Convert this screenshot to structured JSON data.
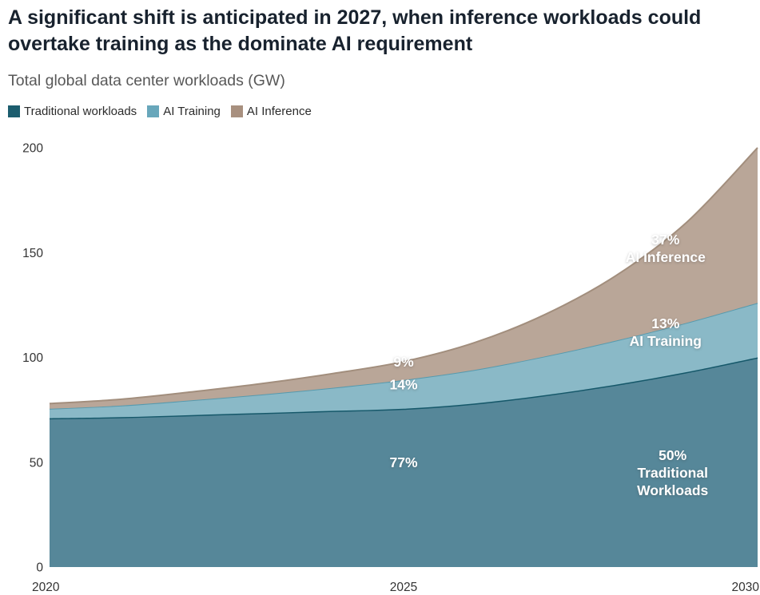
{
  "header": {
    "title": "A significant shift is anticipated in 2027, when inference workloads could overtake training as the dominate AI requirement",
    "subtitle": "Total global data center workloads (GW)"
  },
  "legend": {
    "items": [
      {
        "label": "Traditional workloads",
        "color": "#1c5d6e"
      },
      {
        "label": "AI Training",
        "color": "#68a7bb"
      },
      {
        "label": "AI Inference",
        "color": "#a8907f"
      }
    ]
  },
  "chart_data": {
    "type": "area",
    "stacked": true,
    "title": "Total global data center workloads (GW)",
    "xlabel": "",
    "ylabel": "GW",
    "x": [
      2020,
      2021,
      2022,
      2023,
      2024,
      2025,
      2026,
      2027,
      2028,
      2029,
      2030
    ],
    "series": [
      {
        "name": "Traditional workloads",
        "fill": "#568799",
        "stroke": "#16586a",
        "values": [
          71,
          71.5,
          72.5,
          73.5,
          74.5,
          75.5,
          78,
          82,
          87,
          93,
          100
        ]
      },
      {
        "name": "AI Training",
        "fill": "#8ab9c7",
        "stroke": "#569aae",
        "values": [
          4.5,
          5.5,
          7,
          8.8,
          11,
          13.7,
          16,
          18.5,
          21,
          23.5,
          26
        ]
      },
      {
        "name": "AI Inference",
        "fill": "#b9a698",
        "stroke": "#a28e7d",
        "values": [
          2.5,
          3,
          4,
          5.2,
          6.8,
          8.8,
          13,
          20,
          31,
          48,
          74
        ]
      }
    ],
    "xticks": [
      2020,
      2025,
      2030
    ],
    "yticks": [
      0,
      50,
      100,
      150,
      200
    ],
    "xlim": [
      2020,
      2030
    ],
    "ylim": [
      0,
      200
    ],
    "grid": false,
    "legend_position": "top",
    "annotations": [
      {
        "lines": [
          "9%"
        ],
        "x": 2025,
        "y": 98
      },
      {
        "lines": [
          "14%"
        ],
        "x": 2025,
        "y": 87
      },
      {
        "lines": [
          "77%"
        ],
        "x": 2025,
        "y": 50
      },
      {
        "lines": [
          "37%",
          "AI Inference"
        ],
        "x": 2028.7,
        "y": 152
      },
      {
        "lines": [
          "13%",
          "AI Training"
        ],
        "x": 2028.7,
        "y": 112
      },
      {
        "lines": [
          "50%",
          "Traditional",
          "Workloads"
        ],
        "x": 2028.8,
        "y": 45
      }
    ]
  }
}
